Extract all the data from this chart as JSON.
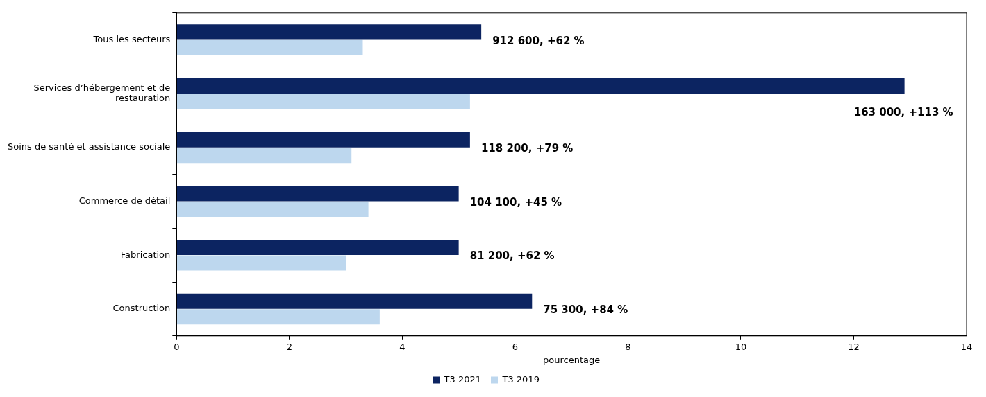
{
  "chart_data": {
    "type": "bar",
    "orientation": "horizontal",
    "xlabel": "pourcentage",
    "categories": [
      "Tous les secteurs",
      "Services d’hébergement et de restauration",
      "Soins de santé et assistance sociale",
      "Commerce de détail",
      "Fabrication",
      "Construction"
    ],
    "series": [
      {
        "name": "T3 2021",
        "color": "#0c2461",
        "values": [
          5.4,
          12.9,
          5.2,
          5.0,
          5.0,
          6.3
        ]
      },
      {
        "name": "T3 2019",
        "color": "#bdd7ee",
        "values": [
          3.3,
          5.2,
          3.1,
          3.4,
          3.0,
          3.6
        ]
      }
    ],
    "xlim": [
      0,
      14
    ],
    "xticks": [
      0,
      2,
      4,
      6,
      8,
      10,
      12,
      14
    ],
    "grid": false,
    "legend": "bottom",
    "annotations": [
      {
        "text": "912 600, +62 %",
        "x": 5.4,
        "y": "Tous les secteurs"
      },
      {
        "text": "163 000, +113 %",
        "x": 12.9,
        "y": "Services d’hébergement et de restauration"
      },
      {
        "text": "118 200, +79 %",
        "x": 5.2,
        "y": "Soins de santé et assistance sociale"
      },
      {
        "text": "104 100, +45 %",
        "x": 5.0,
        "y": "Commerce de détail"
      },
      {
        "text": "81 200, +62 %",
        "x": 5.0,
        "y": "Fabrication"
      },
      {
        "text": "75 300, +84 %",
        "x": 6.3,
        "y": "Construction"
      }
    ]
  }
}
